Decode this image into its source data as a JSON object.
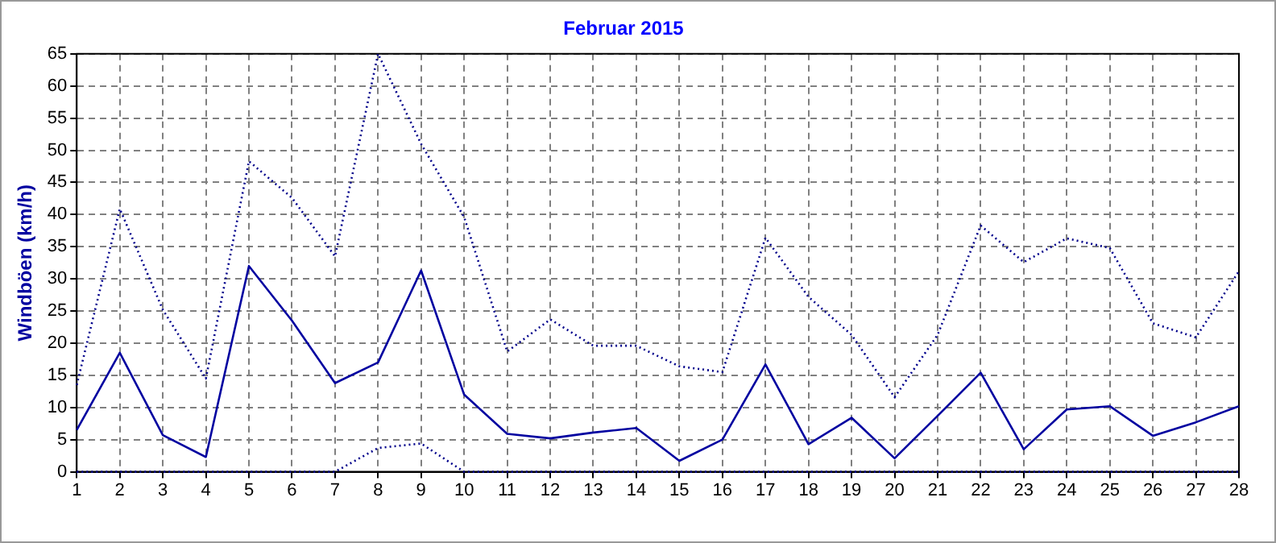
{
  "chart_data": {
    "type": "line",
    "title": "Februar 2015",
    "ylabel": "Windböen (km/h)",
    "x": [
      1,
      2,
      3,
      4,
      5,
      6,
      7,
      8,
      9,
      10,
      11,
      12,
      13,
      14,
      15,
      16,
      17,
      18,
      19,
      20,
      21,
      22,
      23,
      24,
      25,
      26,
      27,
      28
    ],
    "xlim": [
      1,
      28
    ],
    "xticks": [
      1,
      2,
      3,
      4,
      5,
      6,
      7,
      8,
      9,
      10,
      11,
      12,
      13,
      14,
      15,
      16,
      17,
      18,
      19,
      20,
      21,
      22,
      23,
      24,
      25,
      26,
      27,
      28
    ],
    "ylim": [
      0,
      65
    ],
    "yticks": [
      0,
      5,
      10,
      15,
      20,
      25,
      30,
      35,
      40,
      45,
      50,
      55,
      60,
      65
    ],
    "grid": true,
    "legend": false,
    "marker": "none",
    "series": [
      {
        "color": "#00008b",
        "line_style": "dotted",
        "values": [
          13.5,
          40.9,
          25.2,
          14.5,
          48.3,
          42.6,
          33.5,
          65,
          51,
          39.6,
          18.7,
          23.7,
          19.6,
          19.6,
          16.4,
          15.5,
          36.4,
          27.2,
          21.3,
          11.6,
          21.3,
          38.3,
          32.6,
          36.3,
          34.8,
          23.1,
          20.9,
          31.2
        ]
      },
      {
        "color": "#0000a0",
        "line_style": "solid",
        "values": [
          6.5,
          18.5,
          5.7,
          2.3,
          32,
          23.5,
          13.8,
          17,
          31.3,
          12,
          5.9,
          5.2,
          6.1,
          6.8,
          1.7,
          5,
          16.7,
          4.3,
          8.4,
          2.1,
          8.7,
          15.4,
          3.5,
          9.7,
          10.2,
          5.6,
          7.7,
          10.2
        ]
      },
      {
        "color": "#00008b",
        "line_style": "dotted",
        "values": [
          0,
          0,
          0,
          0,
          0,
          0,
          0,
          3.7,
          4.4,
          0,
          0,
          0,
          0,
          0,
          0,
          0,
          0,
          0,
          0,
          0,
          0,
          0,
          0,
          0,
          0,
          0,
          0,
          0
        ]
      }
    ]
  }
}
